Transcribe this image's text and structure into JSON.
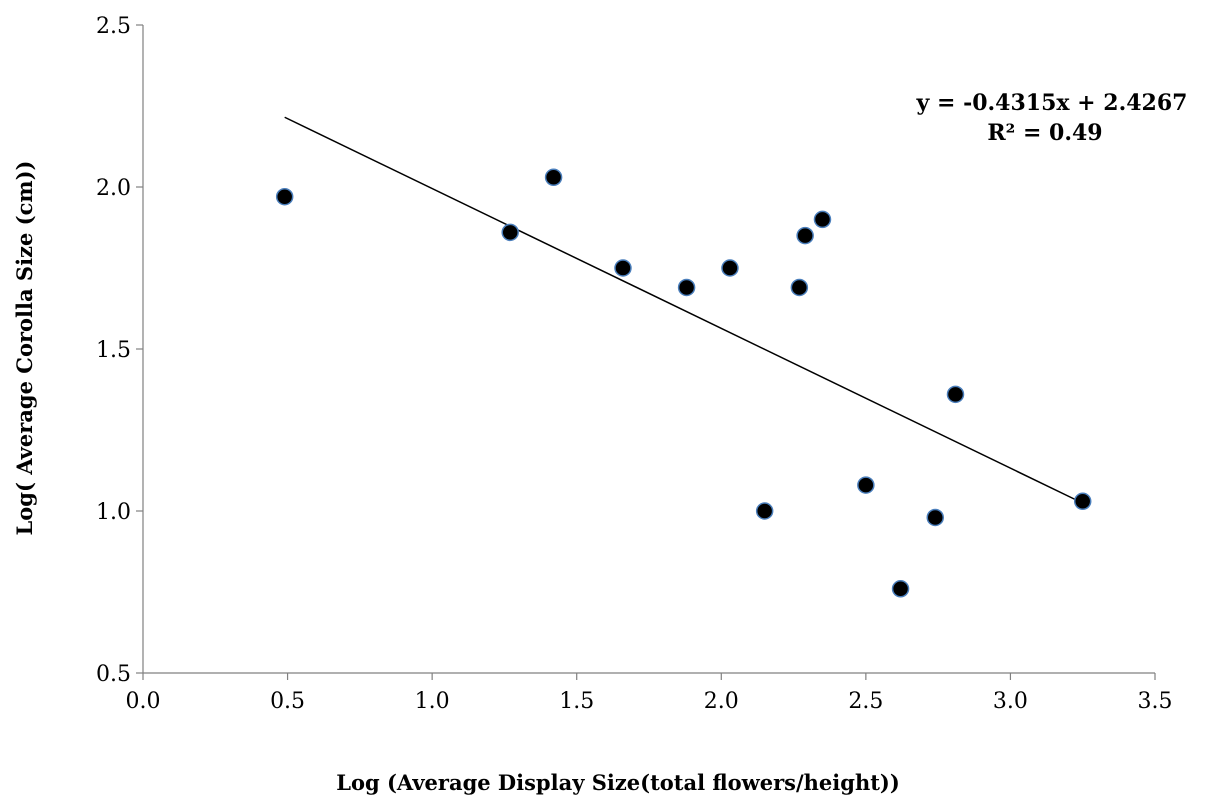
{
  "chart_data": {
    "type": "scatter",
    "xlabel": "Log (Average Display Size(total flowers/height))",
    "ylabel": "Log( Average Corolla Size (cm))",
    "xlim": [
      0,
      3.5
    ],
    "ylim": [
      0.5,
      2.5
    ],
    "x_ticks": [
      "0.0",
      "0.5",
      "1.0",
      "1.5",
      "2.0",
      "2.5",
      "3.0",
      "3.5"
    ],
    "y_ticks": [
      "0.5",
      "1.0",
      "1.5",
      "2.0",
      "2.5"
    ],
    "grid": false,
    "points": [
      {
        "x": 0.49,
        "y": 1.97
      },
      {
        "x": 1.27,
        "y": 1.86
      },
      {
        "x": 1.42,
        "y": 2.03
      },
      {
        "x": 1.66,
        "y": 1.75
      },
      {
        "x": 1.88,
        "y": 1.69
      },
      {
        "x": 2.03,
        "y": 1.75
      },
      {
        "x": 2.15,
        "y": 1.0
      },
      {
        "x": 2.27,
        "y": 1.69
      },
      {
        "x": 2.29,
        "y": 1.85
      },
      {
        "x": 2.35,
        "y": 1.9
      },
      {
        "x": 2.5,
        "y": 1.08
      },
      {
        "x": 2.62,
        "y": 0.76
      },
      {
        "x": 2.74,
        "y": 0.98
      },
      {
        "x": 2.81,
        "y": 1.36
      },
      {
        "x": 3.25,
        "y": 1.03
      }
    ],
    "trendline": {
      "slope": -0.4315,
      "intercept": 2.4267,
      "x_range": [
        0.49,
        3.25
      ],
      "equation": "y = -0.4315x + 2.4267",
      "r2_text": "R² = 0.49"
    },
    "colors": {
      "marker_fill": "#000000",
      "marker_stroke": "#4a7ebb",
      "line": "#000000",
      "axis": "#808080"
    }
  }
}
